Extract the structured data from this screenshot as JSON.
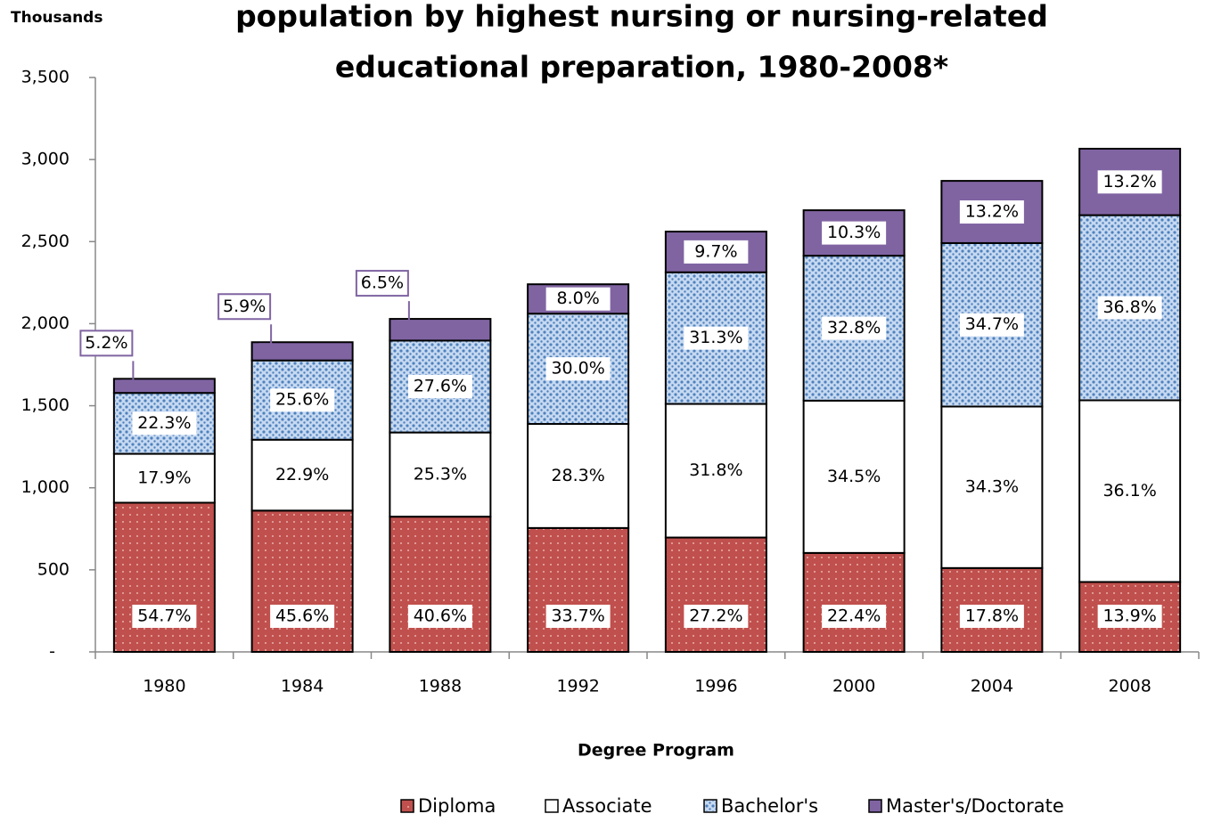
{
  "chart_data": {
    "type": "stacked_bar",
    "title": [
      "population by highest nursing or nursing-related",
      "educational preparation, 1980-2008*"
    ],
    "y_axis_label": "Thousands",
    "x_axis_label": "Degree Program",
    "categories": [
      "1980",
      "1984",
      "1988",
      "1992",
      "1996",
      "2000",
      "2004",
      "2008"
    ],
    "series": [
      {
        "name": "Diploma",
        "color": "#c0504d",
        "values": [
          909,
          861,
          824,
          755,
          697,
          603,
          511,
          426
        ],
        "share_labels": [
          "54.7%",
          "45.6%",
          "40.6%",
          "33.7%",
          "27.2%",
          "22.4%",
          "17.8%",
          "13.9%"
        ]
      },
      {
        "name": "Associate",
        "color": "#ffffff",
        "values": [
          298,
          432,
          513,
          634,
          814,
          928,
          984,
          1107
        ],
        "share_labels": [
          "17.9%",
          "22.9%",
          "25.3%",
          "28.3%",
          "31.8%",
          "34.5%",
          "34.3%",
          "36.1%"
        ]
      },
      {
        "name": "Bachelor's",
        "color": "#c6d9f1",
        "values": [
          371,
          483,
          560,
          672,
          802,
          883,
          996,
          1128
        ],
        "share_labels": [
          "22.3%",
          "25.6%",
          "27.6%",
          "30.0%",
          "31.3%",
          "32.8%",
          "34.7%",
          "36.8%"
        ]
      },
      {
        "name": "Master's/Doctorate",
        "color": "#8064a2",
        "values": [
          86,
          111,
          132,
          179,
          248,
          277,
          379,
          405
        ],
        "share_labels": [
          "5.2%",
          "5.9%",
          "6.5%",
          "8.0%",
          "9.7%",
          "10.3%",
          "13.2%",
          "13.2%"
        ]
      }
    ],
    "ylim": [
      0,
      3500
    ],
    "yticks": [
      {
        "value": 0,
        "label": "-"
      },
      500,
      {
        "value": 1000,
        "label": "1,000"
      },
      {
        "value": 1500,
        "label": "1,500"
      },
      {
        "value": 2000,
        "label": "2,000"
      },
      {
        "value": 2500,
        "label": "2,500"
      },
      {
        "value": 3000,
        "label": "3,000"
      },
      {
        "value": 3500,
        "label": "3,500"
      }
    ],
    "grid": false
  }
}
